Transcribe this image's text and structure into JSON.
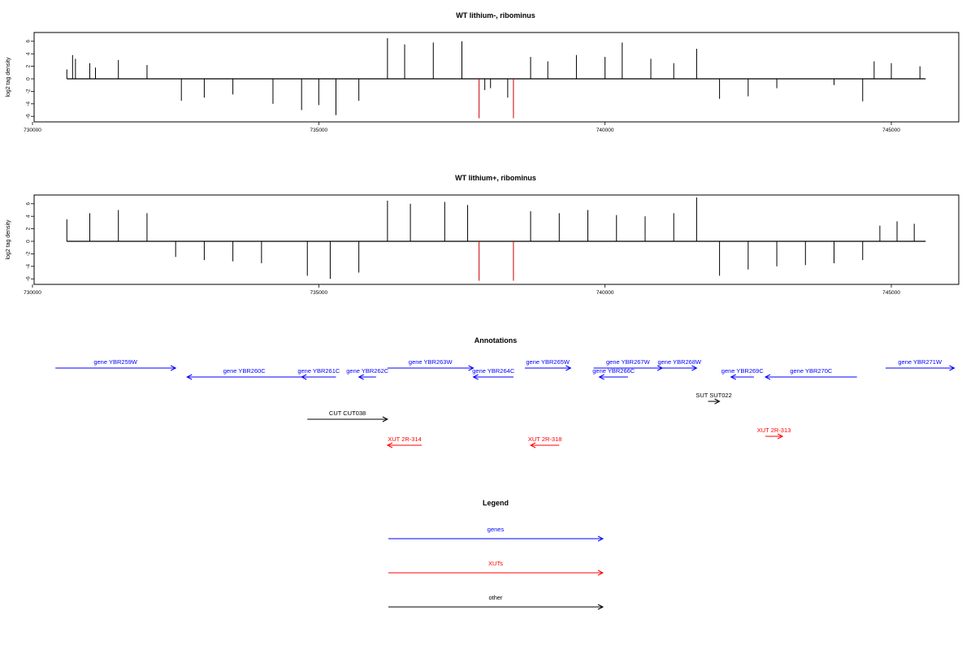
{
  "panels": [
    {
      "title": "WT lithium-, ribominus",
      "ylabel": "log2 tag density",
      "yticks": [
        "6",
        "4",
        "2",
        "0",
        "-2",
        "-4",
        "-6"
      ],
      "xticks": [
        "730000",
        "735000",
        "740000",
        "745000"
      ]
    },
    {
      "title": "WT lithium+, ribominus",
      "ylabel": "log2 tag density",
      "yticks": [
        "6",
        "4",
        "2",
        "0",
        "-2",
        "-4",
        "-6"
      ],
      "xticks": [
        "730000",
        "735000",
        "740000",
        "745000"
      ]
    }
  ],
  "chart_data": [
    {
      "type": "bar",
      "title": "WT lithium-, ribominus",
      "ylabel": "log2 tag density",
      "xlim": [
        730000,
        746000
      ],
      "ylim": [
        -6.5,
        7
      ],
      "grid": false,
      "series": [
        {
          "values": [
            [
              730600,
              1.5
            ],
            [
              730700,
              3.8
            ],
            [
              730750,
              3.2
            ],
            [
              731000,
              2.5
            ],
            [
              731100,
              1.8
            ],
            [
              731500,
              3.0
            ],
            [
              732000,
              2.2
            ],
            [
              732600,
              -3.5
            ],
            [
              733000,
              -3.0
            ],
            [
              733500,
              -2.5
            ],
            [
              734200,
              -4.0
            ],
            [
              734700,
              -5.0
            ],
            [
              735000,
              -4.2
            ],
            [
              735300,
              -5.8
            ],
            [
              735700,
              -3.5
            ],
            [
              736200,
              6.5
            ],
            [
              736500,
              5.5
            ],
            [
              737000,
              5.8
            ],
            [
              737500,
              6.0
            ],
            [
              737800,
              -6.3
            ],
            [
              737900,
              -1.8
            ],
            [
              738000,
              -1.5
            ],
            [
              738300,
              -3.0
            ],
            [
              738400,
              -6.3
            ],
            [
              738700,
              3.5
            ],
            [
              739000,
              2.8
            ],
            [
              739500,
              3.8
            ],
            [
              740000,
              3.5
            ],
            [
              740300,
              5.8
            ],
            [
              740800,
              3.2
            ],
            [
              741200,
              2.5
            ],
            [
              741600,
              4.8
            ],
            [
              742000,
              -3.2
            ],
            [
              742500,
              -2.8
            ],
            [
              743000,
              -1.5
            ],
            [
              744000,
              -1.0
            ],
            [
              744500,
              -3.6
            ],
            [
              744700,
              2.8
            ],
            [
              745000,
              2.5
            ],
            [
              745500,
              2.0
            ]
          ]
        }
      ]
    },
    {
      "type": "bar",
      "title": "WT lithium+, ribominus",
      "ylabel": "log2 tag density",
      "xlim": [
        730000,
        746000
      ],
      "ylim": [
        -6.5,
        7
      ],
      "grid": false,
      "series": [
        {
          "values": [
            [
              730600,
              3.5
            ],
            [
              731000,
              4.5
            ],
            [
              731500,
              5.0
            ],
            [
              732000,
              4.5
            ],
            [
              732500,
              -2.5
            ],
            [
              733000,
              -3.0
            ],
            [
              733500,
              -3.2
            ],
            [
              734000,
              -3.5
            ],
            [
              734800,
              -5.5
            ],
            [
              735200,
              -6.0
            ],
            [
              735700,
              -5.0
            ],
            [
              736200,
              6.5
            ],
            [
              736600,
              6.0
            ],
            [
              737200,
              6.3
            ],
            [
              737600,
              5.8
            ],
            [
              737800,
              -6.3
            ],
            [
              738400,
              -6.3
            ],
            [
              738700,
              4.8
            ],
            [
              739200,
              4.5
            ],
            [
              739700,
              5.0
            ],
            [
              740200,
              4.2
            ],
            [
              740700,
              4.0
            ],
            [
              741200,
              4.5
            ],
            [
              741600,
              7.0
            ],
            [
              742000,
              -5.5
            ],
            [
              742500,
              -4.5
            ],
            [
              743000,
              -4.0
            ],
            [
              743500,
              -3.8
            ],
            [
              744000,
              -3.5
            ],
            [
              744500,
              -3.0
            ],
            [
              744800,
              2.5
            ],
            [
              745100,
              3.2
            ],
            [
              745400,
              2.8
            ]
          ]
        }
      ]
    }
  ],
  "annotations": {
    "title": "Annotations",
    "items": [
      {
        "label": "gene YBR259W",
        "kind": "genes",
        "dir": "right",
        "row": 0,
        "start": 730400,
        "end": 732500
      },
      {
        "label": "gene YBR260C",
        "kind": "genes",
        "dir": "left",
        "row": 1,
        "start": 732700,
        "end": 734700
      },
      {
        "label": "gene YBR261C",
        "kind": "genes",
        "dir": "left",
        "row": 1,
        "start": 734700,
        "end": 735300
      },
      {
        "label": "gene YBR262C",
        "kind": "genes",
        "dir": "left",
        "row": 1,
        "start": 735700,
        "end": 736000
      },
      {
        "label": "gene YBR263W",
        "kind": "genes",
        "dir": "right",
        "row": 0,
        "start": 736200,
        "end": 737700
      },
      {
        "label": "gene YBR264C",
        "kind": "genes",
        "dir": "left",
        "row": 1,
        "start": 737700,
        "end": 738400
      },
      {
        "label": "gene YBR265W",
        "kind": "genes",
        "dir": "right",
        "row": 0,
        "start": 738600,
        "end": 739400
      },
      {
        "label": "gene YBR267W",
        "kind": "genes",
        "dir": "right",
        "row": 0,
        "start": 739800,
        "end": 741000
      },
      {
        "label": "gene YBR266C",
        "kind": "genes",
        "dir": "left",
        "row": 1,
        "start": 739900,
        "end": 740400
      },
      {
        "label": "gene YBR268W",
        "kind": "genes",
        "dir": "right",
        "row": 0,
        "start": 741000,
        "end": 741600
      },
      {
        "label": "gene YBR269C",
        "kind": "genes",
        "dir": "left",
        "row": 1,
        "start": 742200,
        "end": 742600
      },
      {
        "label": "gene YBR270C",
        "kind": "genes",
        "dir": "left",
        "row": 1,
        "start": 742800,
        "end": 744400
      },
      {
        "label": "gene YBR271W",
        "kind": "genes",
        "dir": "right",
        "row": 0,
        "start": 744900,
        "end": 746100
      },
      {
        "label": "SUT SUT022",
        "kind": "other",
        "dir": "right",
        "row": 2,
        "start": 741800,
        "end": 742000
      },
      {
        "label": "CUT CUT038",
        "kind": "other",
        "dir": "right",
        "row": 3,
        "start": 734800,
        "end": 736200
      },
      {
        "label": "XUT 2R-313",
        "kind": "XUTs",
        "dir": "right",
        "row": 4,
        "start": 742800,
        "end": 743100
      },
      {
        "label": "XUT 2R-314",
        "kind": "XUTs",
        "dir": "left",
        "row": 5,
        "start": 736200,
        "end": 736800
      },
      {
        "label": "XUT 2R-318",
        "kind": "XUTs",
        "dir": "left",
        "row": 5,
        "start": 738700,
        "end": 739200
      }
    ]
  },
  "legend": {
    "title": "Legend",
    "items": [
      {
        "label": "genes",
        "color": "#0000ff"
      },
      {
        "label": "XUTs",
        "color": "#ff0000"
      },
      {
        "label": "other",
        "color": "#000000"
      }
    ]
  },
  "colors": {
    "genes": "#0000ff",
    "XUTs": "#ff0000",
    "other": "#000000",
    "highlight": "#cc0000"
  }
}
